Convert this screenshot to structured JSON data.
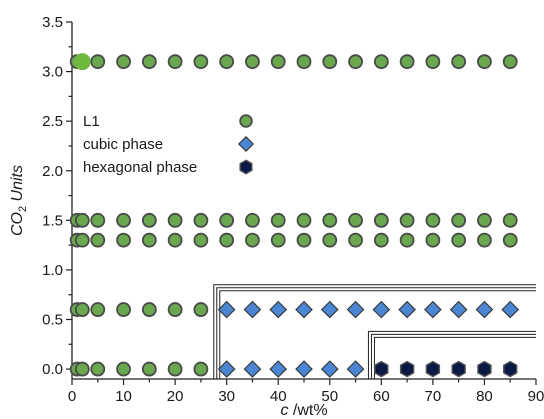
{
  "chart_data": {
    "type": "scatter",
    "xlabel": {
      "italic": "c",
      "rest": " /wt%"
    },
    "ylabel": {
      "prefix": "CO",
      "sub": "2",
      "rest": " Units"
    },
    "xlim": [
      0,
      90
    ],
    "ylim": [
      -0.1,
      3.5
    ],
    "x_ticks": [
      0,
      10,
      20,
      30,
      40,
      50,
      60,
      70,
      80,
      90
    ],
    "x_tick_labels": [
      "0",
      "10",
      "20",
      "30",
      "40",
      "50",
      "60",
      "70",
      "80",
      "90"
    ],
    "y_ticks": [
      0.0,
      0.5,
      1.0,
      1.5,
      2.0,
      2.5,
      3.0,
      3.5
    ],
    "y_tick_labels": [
      "0.0",
      "0.5",
      "1.0",
      "1.5",
      "2.0",
      "2.5",
      "3.0",
      "3.5"
    ],
    "grid": false,
    "legend_placement": "upper-left",
    "series": [
      {
        "name": "L1",
        "marker": "circle",
        "color": "#6aa84f",
        "edge_color": "#4a4a4a",
        "points": [
          [
            1,
            3.1
          ],
          [
            5,
            3.1
          ],
          [
            10,
            3.1
          ],
          [
            15,
            3.1
          ],
          [
            20,
            3.1
          ],
          [
            25,
            3.1
          ],
          [
            30,
            3.1
          ],
          [
            35,
            3.1
          ],
          [
            40,
            3.1
          ],
          [
            45,
            3.1
          ],
          [
            50,
            3.1
          ],
          [
            55,
            3.1
          ],
          [
            60,
            3.1
          ],
          [
            65,
            3.1
          ],
          [
            70,
            3.1
          ],
          [
            75,
            3.1
          ],
          [
            80,
            3.1
          ],
          [
            85,
            3.1
          ],
          [
            1,
            1.5
          ],
          [
            2,
            1.5
          ],
          [
            5,
            1.5
          ],
          [
            10,
            1.5
          ],
          [
            15,
            1.5
          ],
          [
            20,
            1.5
          ],
          [
            25,
            1.5
          ],
          [
            30,
            1.5
          ],
          [
            35,
            1.5
          ],
          [
            40,
            1.5
          ],
          [
            45,
            1.5
          ],
          [
            50,
            1.5
          ],
          [
            55,
            1.5
          ],
          [
            60,
            1.5
          ],
          [
            65,
            1.5
          ],
          [
            70,
            1.5
          ],
          [
            75,
            1.5
          ],
          [
            80,
            1.5
          ],
          [
            85,
            1.5
          ],
          [
            1,
            1.3
          ],
          [
            2,
            1.3
          ],
          [
            5,
            1.3
          ],
          [
            10,
            1.3
          ],
          [
            15,
            1.3
          ],
          [
            20,
            1.3
          ],
          [
            25,
            1.3
          ],
          [
            30,
            1.3
          ],
          [
            35,
            1.3
          ],
          [
            40,
            1.3
          ],
          [
            45,
            1.3
          ],
          [
            50,
            1.3
          ],
          [
            55,
            1.3
          ],
          [
            60,
            1.3
          ],
          [
            65,
            1.3
          ],
          [
            70,
            1.3
          ],
          [
            75,
            1.3
          ],
          [
            80,
            1.3
          ],
          [
            85,
            1.3
          ],
          [
            1,
            0.6
          ],
          [
            2,
            0.6
          ],
          [
            5,
            0.6
          ],
          [
            10,
            0.6
          ],
          [
            15,
            0.6
          ],
          [
            20,
            0.6
          ],
          [
            25,
            0.6
          ],
          [
            1,
            0.0
          ],
          [
            2,
            0.0
          ],
          [
            5,
            0.0
          ],
          [
            10,
            0.0
          ],
          [
            15,
            0.0
          ],
          [
            20,
            0.0
          ],
          [
            25,
            0.0
          ]
        ]
      },
      {
        "name": "cubic phase",
        "marker": "diamond",
        "color": "#4a86d4",
        "edge_color": "#3a3a3a",
        "points": [
          [
            30,
            0.6
          ],
          [
            35,
            0.6
          ],
          [
            40,
            0.6
          ],
          [
            45,
            0.6
          ],
          [
            50,
            0.6
          ],
          [
            55,
            0.6
          ],
          [
            60,
            0.6
          ],
          [
            65,
            0.6
          ],
          [
            70,
            0.6
          ],
          [
            75,
            0.6
          ],
          [
            80,
            0.6
          ],
          [
            85,
            0.6
          ],
          [
            30,
            0.0
          ],
          [
            35,
            0.0
          ],
          [
            40,
            0.0
          ],
          [
            45,
            0.0
          ],
          [
            50,
            0.0
          ],
          [
            55,
            0.0
          ]
        ]
      },
      {
        "name": "hexagonal phase",
        "marker": "hexagon",
        "color": "#0b1a45",
        "edge_color": "#555555",
        "points": [
          [
            60,
            0.0
          ],
          [
            65,
            0.0
          ],
          [
            70,
            0.0
          ],
          [
            75,
            0.0
          ],
          [
            80,
            0.0
          ],
          [
            85,
            0.0
          ]
        ]
      }
    ],
    "highlight_point": {
      "x": 2,
      "y": 3.1,
      "color": "#6fb83f"
    },
    "region_boundaries": [
      {
        "x_start": 27.5,
        "y_top": 0.85,
        "x_end": 90
      },
      {
        "x_start": 57.5,
        "y_top": 0.38,
        "x_end": 90
      }
    ]
  }
}
